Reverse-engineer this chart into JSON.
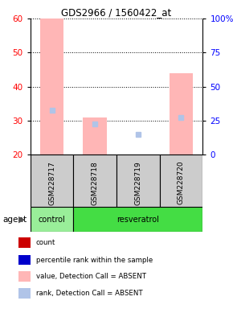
{
  "title": "GDS2966 / 1560422_at",
  "samples": [
    "GSM228717",
    "GSM228718",
    "GSM228719",
    "GSM228720"
  ],
  "ylim_left": [
    20,
    60
  ],
  "ylim_right": [
    0,
    100
  ],
  "yticks_left": [
    20,
    30,
    40,
    50,
    60
  ],
  "yticks_right": [
    0,
    25,
    50,
    75,
    100
  ],
  "ytick_labels_right": [
    "0",
    "25",
    "50",
    "75",
    "100%"
  ],
  "count_values": [
    60,
    31,
    20,
    44
  ],
  "rank_values": [
    33,
    29,
    26,
    31
  ],
  "count_color_absent": "#FFB6B6",
  "rank_color_absent": "#B0C4E8",
  "legend_items": [
    {
      "label": "count",
      "color": "#CC0000"
    },
    {
      "label": "percentile rank within the sample",
      "color": "#0000CC"
    },
    {
      "label": "value, Detection Call = ABSENT",
      "color": "#FFB6B6"
    },
    {
      "label": "rank, Detection Call = ABSENT",
      "color": "#B0C4E8"
    }
  ],
  "agent_label": "agent",
  "group_label_control": "control",
  "group_label_resveratrol": "resveratrol",
  "background_color": "#ffffff",
  "sample_bg": "#CCCCCC",
  "control_color": "#99EE99",
  "resveratrol_color": "#44DD44"
}
